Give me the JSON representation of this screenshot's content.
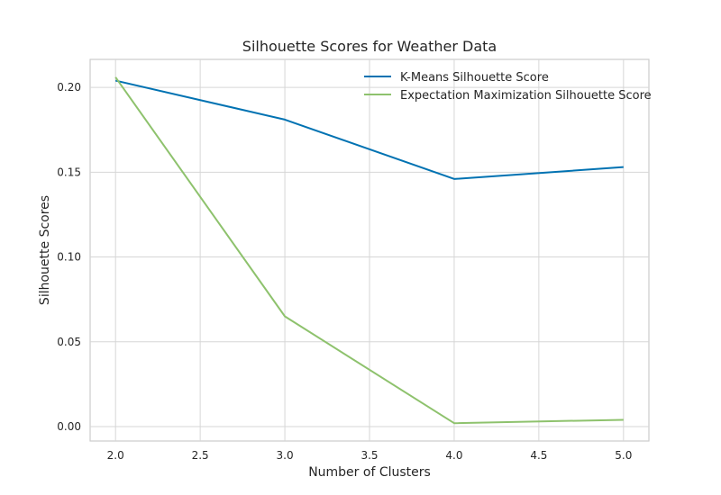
{
  "chart_data": {
    "type": "line",
    "title": "Silhouette Scores for Weather Data",
    "xlabel": "Number of Clusters",
    "ylabel": "Silhouette Scores",
    "xlim": [
      1.85,
      5.15
    ],
    "ylim": [
      -0.0085,
      0.2165
    ],
    "xticks": [
      2.0,
      2.5,
      3.0,
      3.5,
      4.0,
      4.5,
      5.0
    ],
    "xtick_labels": [
      "2.0",
      "2.5",
      "3.0",
      "3.5",
      "4.0",
      "4.5",
      "5.0"
    ],
    "yticks": [
      0.0,
      0.05,
      0.1,
      0.15,
      0.2
    ],
    "ytick_labels": [
      "0.00",
      "0.05",
      "0.10",
      "0.15",
      "0.20"
    ],
    "grid": true,
    "legend_position": "top-right",
    "x": [
      2,
      3,
      4,
      5
    ],
    "series": [
      {
        "name": "K-Means Silhouette Score",
        "color": "#0072b2",
        "values": [
          0.204,
          0.181,
          0.146,
          0.153
        ]
      },
      {
        "name": "Expectation Maximization Silhouette Score",
        "color": "#8ec26d",
        "values": [
          0.206,
          0.065,
          0.002,
          0.004
        ]
      }
    ]
  }
}
